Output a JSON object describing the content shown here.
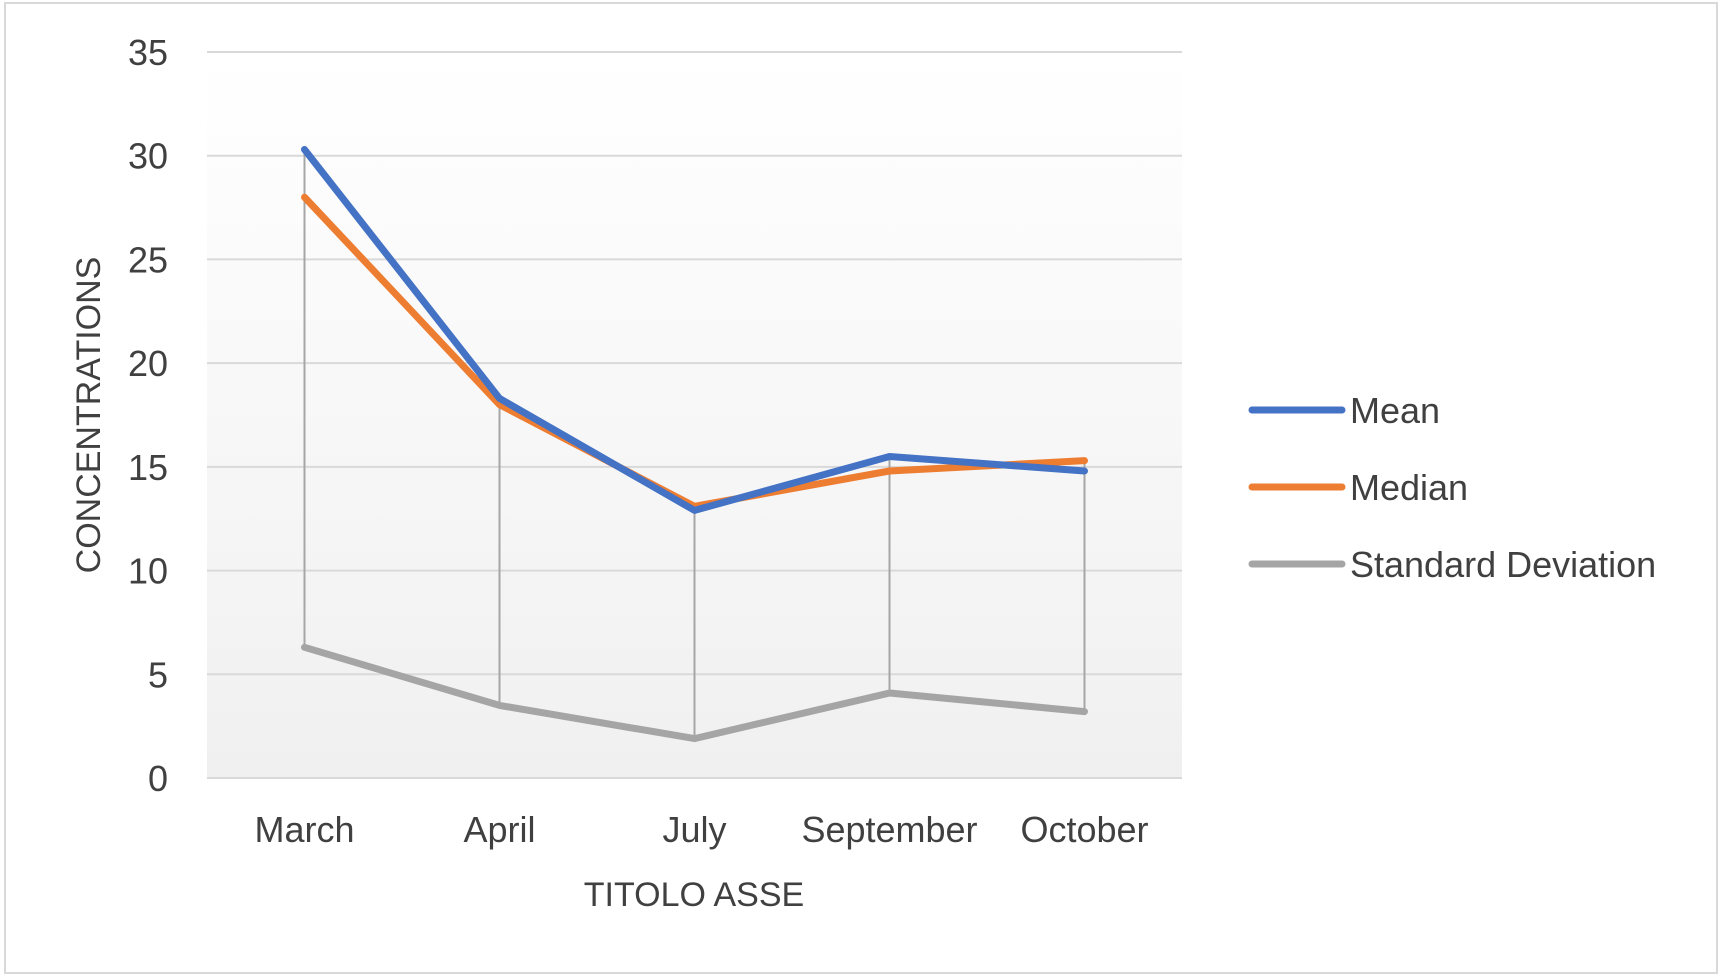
{
  "chart_data": {
    "type": "line",
    "title": "",
    "xlabel": "TITOLO ASSE",
    "ylabel": "CONCENTRATIONS",
    "categories": [
      "March",
      "April",
      "July",
      "September",
      "October"
    ],
    "ylim": [
      0,
      35
    ],
    "yticks": [
      0,
      5,
      10,
      15,
      20,
      25,
      30,
      35
    ],
    "grid": true,
    "drop_lines": true,
    "legend_position": "right",
    "series": [
      {
        "name": "Mean",
        "color": "#4472C4",
        "values": [
          30.3,
          18.3,
          12.9,
          15.5,
          14.8
        ]
      },
      {
        "name": "Median",
        "color": "#ED7D31",
        "values": [
          28.0,
          18.0,
          13.1,
          14.8,
          15.3
        ]
      },
      {
        "name": "Standard Deviation",
        "color": "#A5A5A5",
        "values": [
          6.3,
          3.5,
          1.9,
          4.1,
          3.2
        ]
      }
    ]
  }
}
